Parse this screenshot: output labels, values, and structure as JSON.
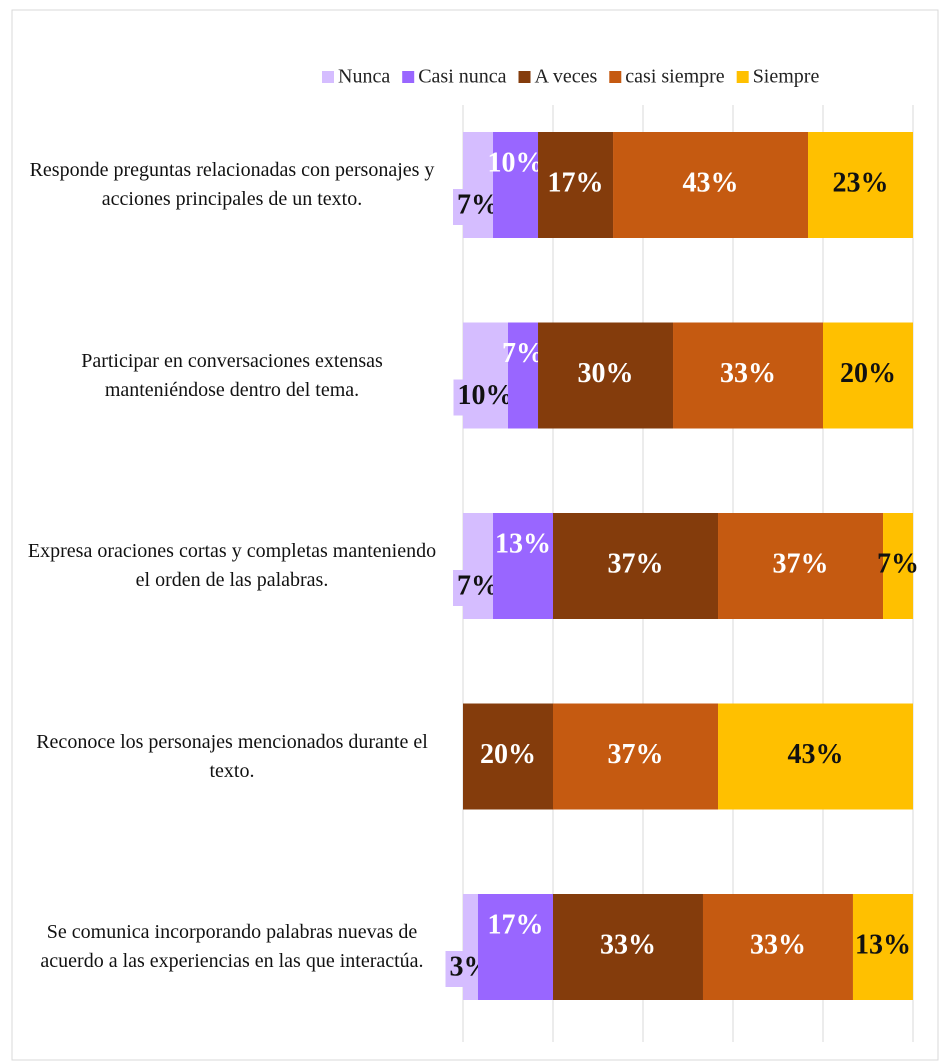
{
  "chart_data": {
    "type": "stacked-bar-horizontal",
    "categories": [
      "Responde preguntas relacionadas con personajes y acciones principales de un texto.",
      "Participar en conversaciones extensas manteniéndose dentro del tema.",
      "Expresa oraciones cortas y completas manteniendo el orden de las palabras.",
      "Reconoce los personajes mencionados durante el texto.",
      "Se comunica incorporando palabras nuevas de acuerdo a las experiencias en las que interactúa."
    ],
    "series": [
      {
        "name": "Nunca",
        "color": "#d5bdff",
        "values": [
          6.67,
          10,
          6.67,
          0,
          3.33
        ],
        "value_labels": [
          "7%",
          "10%",
          "7%",
          null,
          "3%"
        ]
      },
      {
        "name": "Casi nunca",
        "color": "#9966ff",
        "values": [
          10,
          6.67,
          13.33,
          0,
          16.67
        ],
        "value_labels": [
          "10%",
          "7%",
          "13%",
          null,
          "17%"
        ]
      },
      {
        "name": "A veces",
        "color": "#843c0c",
        "values": [
          16.67,
          30,
          36.67,
          20,
          33.33
        ],
        "value_labels": [
          "17%",
          "30%",
          "37%",
          "20%",
          "33%"
        ]
      },
      {
        "name": "casi siempre",
        "color": "#c55a11",
        "values": [
          43.33,
          33.33,
          36.67,
          36.67,
          33.33
        ],
        "value_labels": [
          "43%",
          "33%",
          "37%",
          "37%",
          "33%"
        ]
      },
      {
        "name": "Siempre",
        "color": "#ffc000",
        "values": [
          23.33,
          20,
          6.67,
          43.33,
          13.33
        ],
        "value_labels": [
          "23%",
          "20%",
          "7%",
          "43%",
          "13%"
        ]
      }
    ],
    "xlim": [
      0,
      100
    ],
    "xticks": [
      0,
      20,
      40,
      60,
      80,
      100
    ],
    "grid": true,
    "legend": "top"
  }
}
